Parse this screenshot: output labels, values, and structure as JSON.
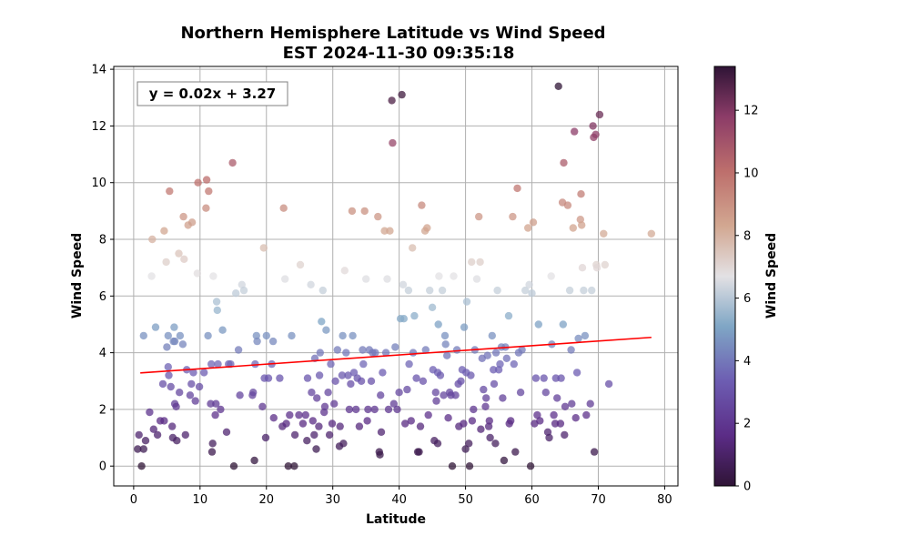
{
  "chart_data": {
    "type": "scatter",
    "title": "Northern Hemisphere Latitude vs Wind Speed",
    "subtitle": "EST 2024-11-30 09:35:18",
    "xlabel": "Latitude",
    "ylabel": "Wind Speed",
    "colorbar_label": "Wind Speed",
    "equation": "y = 0.02x + 3.27",
    "xlim": [
      -3,
      82
    ],
    "ylim": [
      -0.7,
      14.1
    ],
    "xticks": [
      0,
      10,
      20,
      30,
      40,
      50,
      60,
      70,
      80
    ],
    "yticks": [
      0,
      2,
      4,
      6,
      8,
      10,
      12,
      14
    ],
    "colorbar_ticks": [
      0,
      2,
      4,
      6,
      8,
      10,
      12
    ],
    "colorbar_range": [
      0,
      13.4
    ],
    "colormap": "twilight_shifted",
    "regression": {
      "slope": 0.0163,
      "intercept": 3.27,
      "x_start": 1,
      "x_end": 78,
      "color": "#ff0000"
    },
    "grid": true,
    "points": [
      [
        0.6,
        0.6
      ],
      [
        0.8,
        1.1
      ],
      [
        1.2,
        0.0
      ],
      [
        1.5,
        0.6
      ],
      [
        1.8,
        0.9
      ],
      [
        1.5,
        4.6
      ],
      [
        2.4,
        1.9
      ],
      [
        2.7,
        6.7
      ],
      [
        2.8,
        8.0
      ],
      [
        3.0,
        1.3
      ],
      [
        3.3,
        4.9
      ],
      [
        3.6,
        1.1
      ],
      [
        4.0,
        1.6
      ],
      [
        4.4,
        2.9
      ],
      [
        4.6,
        8.3
      ],
      [
        4.6,
        1.6
      ],
      [
        4.9,
        7.2
      ],
      [
        5.0,
        4.2
      ],
      [
        5.2,
        3.5
      ],
      [
        5.2,
        4.6
      ],
      [
        5.3,
        3.2
      ],
      [
        5.4,
        9.7
      ],
      [
        5.6,
        2.8
      ],
      [
        5.8,
        1.4
      ],
      [
        5.9,
        1.0
      ],
      [
        6.0,
        4.4
      ],
      [
        6.1,
        4.9
      ],
      [
        6.2,
        4.4
      ],
      [
        6.2,
        2.2
      ],
      [
        6.4,
        2.1
      ],
      [
        6.5,
        0.9
      ],
      [
        6.8,
        7.5
      ],
      [
        6.9,
        2.6
      ],
      [
        7.0,
        4.6
      ],
      [
        7.4,
        4.3
      ],
      [
        7.5,
        8.8
      ],
      [
        7.6,
        7.3
      ],
      [
        7.8,
        1.1
      ],
      [
        8.0,
        3.4
      ],
      [
        8.2,
        8.5
      ],
      [
        8.5,
        2.5
      ],
      [
        8.7,
        2.9
      ],
      [
        8.8,
        8.6
      ],
      [
        9.0,
        3.3
      ],
      [
        9.3,
        2.3
      ],
      [
        9.6,
        6.8
      ],
      [
        9.7,
        10.0
      ],
      [
        9.9,
        2.8
      ],
      [
        10.6,
        3.3
      ],
      [
        10.9,
        9.1
      ],
      [
        11.0,
        10.1
      ],
      [
        11.2,
        4.6
      ],
      [
        11.3,
        9.7
      ],
      [
        11.6,
        2.2
      ],
      [
        11.7,
        3.6
      ],
      [
        11.8,
        0.5
      ],
      [
        11.9,
        0.8
      ],
      [
        12.0,
        6.7
      ],
      [
        12.3,
        1.8
      ],
      [
        12.4,
        2.2
      ],
      [
        12.5,
        5.8
      ],
      [
        12.6,
        5.5
      ],
      [
        12.7,
        3.6
      ],
      [
        13.1,
        2.0
      ],
      [
        13.4,
        4.8
      ],
      [
        14.0,
        1.2
      ],
      [
        14.3,
        3.6
      ],
      [
        14.6,
        3.6
      ],
      [
        14.9,
        10.7
      ],
      [
        15.1,
        0.0
      ],
      [
        15.4,
        6.1
      ],
      [
        15.8,
        4.1
      ],
      [
        16.0,
        2.5
      ],
      [
        16.3,
        6.4
      ],
      [
        16.6,
        6.2
      ],
      [
        17.9,
        2.5
      ],
      [
        18.0,
        2.6
      ],
      [
        18.2,
        0.2
      ],
      [
        18.3,
        3.6
      ],
      [
        18.5,
        4.6
      ],
      [
        18.6,
        4.4
      ],
      [
        19.4,
        2.1
      ],
      [
        19.6,
        7.7
      ],
      [
        19.7,
        3.1
      ],
      [
        19.9,
        1.0
      ],
      [
        20.0,
        4.6
      ],
      [
        20.3,
        3.1
      ],
      [
        20.8,
        3.6
      ],
      [
        21.0,
        4.4
      ],
      [
        21.1,
        1.7
      ],
      [
        22.0,
        3.1
      ],
      [
        22.4,
        1.4
      ],
      [
        22.6,
        9.1
      ],
      [
        22.8,
        6.6
      ],
      [
        23.0,
        1.5
      ],
      [
        23.3,
        0.0
      ],
      [
        23.5,
        1.8
      ],
      [
        23.8,
        4.6
      ],
      [
        24.2,
        0.0
      ],
      [
        24.3,
        1.1
      ],
      [
        24.9,
        1.8
      ],
      [
        25.1,
        7.1
      ],
      [
        25.5,
        1.5
      ],
      [
        25.9,
        1.8
      ],
      [
        26.1,
        0.9
      ],
      [
        26.2,
        3.1
      ],
      [
        26.8,
        2.6
      ],
      [
        26.7,
        6.4
      ],
      [
        27.0,
        1.6
      ],
      [
        27.2,
        1.1
      ],
      [
        27.3,
        3.8
      ],
      [
        27.5,
        0.6
      ],
      [
        27.6,
        2.4
      ],
      [
        27.9,
        1.4
      ],
      [
        28.0,
        3.2
      ],
      [
        28.1,
        4.0
      ],
      [
        28.3,
        5.1
      ],
      [
        28.5,
        6.2
      ],
      [
        28.7,
        1.9
      ],
      [
        28.8,
        2.1
      ],
      [
        29.0,
        4.8
      ],
      [
        29.3,
        2.6
      ],
      [
        29.5,
        1.1
      ],
      [
        29.7,
        3.6
      ],
      [
        29.9,
        1.5
      ],
      [
        30.2,
        2.2
      ],
      [
        30.4,
        3.0
      ],
      [
        30.7,
        4.1
      ],
      [
        31.0,
        0.7
      ],
      [
        31.1,
        1.4
      ],
      [
        31.4,
        3.2
      ],
      [
        31.5,
        4.6
      ],
      [
        31.6,
        0.8
      ],
      [
        31.8,
        6.9
      ],
      [
        32.0,
        4.0
      ],
      [
        32.3,
        3.2
      ],
      [
        32.5,
        2.0
      ],
      [
        32.7,
        2.9
      ],
      [
        32.9,
        9.0
      ],
      [
        33.0,
        4.6
      ],
      [
        33.2,
        3.3
      ],
      [
        33.5,
        2.0
      ],
      [
        33.7,
        3.1
      ],
      [
        34.0,
        1.4
      ],
      [
        34.3,
        3.0
      ],
      [
        34.5,
        4.1
      ],
      [
        34.6,
        3.6
      ],
      [
        34.8,
        9.0
      ],
      [
        35.0,
        6.6
      ],
      [
        35.2,
        1.6
      ],
      [
        35.3,
        2.0
      ],
      [
        35.5,
        4.1
      ],
      [
        35.8,
        3.0
      ],
      [
        36.0,
        4.0
      ],
      [
        36.3,
        2.0
      ],
      [
        36.4,
        4.0
      ],
      [
        36.8,
        8.8
      ],
      [
        37.0,
        0.5
      ],
      [
        37.1,
        0.4
      ],
      [
        37.2,
        2.5
      ],
      [
        37.3,
        1.2
      ],
      [
        37.5,
        3.3
      ],
      [
        37.8,
        8.3
      ],
      [
        38.0,
        4.0
      ],
      [
        38.2,
        6.6
      ],
      [
        38.4,
        2.0
      ],
      [
        38.6,
        8.3
      ],
      [
        38.9,
        12.9
      ],
      [
        39.0,
        11.4
      ],
      [
        39.2,
        2.2
      ],
      [
        39.4,
        4.2
      ],
      [
        39.7,
        2.0
      ],
      [
        40.0,
        2.6
      ],
      [
        40.2,
        5.2
      ],
      [
        40.4,
        13.1
      ],
      [
        40.6,
        6.4
      ],
      [
        40.7,
        5.2
      ],
      [
        40.9,
        1.5
      ],
      [
        41.2,
        2.7
      ],
      [
        41.4,
        6.2
      ],
      [
        41.5,
        3.6
      ],
      [
        41.8,
        1.6
      ],
      [
        42.0,
        7.7
      ],
      [
        42.1,
        4.0
      ],
      [
        42.3,
        5.3
      ],
      [
        42.6,
        3.1
      ],
      [
        42.8,
        0.5
      ],
      [
        43.0,
        0.5
      ],
      [
        43.2,
        1.4
      ],
      [
        43.4,
        9.2
      ],
      [
        43.6,
        3.0
      ],
      [
        43.9,
        8.3
      ],
      [
        44.0,
        4.1
      ],
      [
        44.2,
        8.4
      ],
      [
        44.4,
        1.8
      ],
      [
        44.6,
        6.2
      ],
      [
        45.0,
        5.6
      ],
      [
        45.1,
        3.4
      ],
      [
        45.3,
        0.9
      ],
      [
        45.5,
        2.6
      ],
      [
        45.6,
        2.3
      ],
      [
        45.8,
        3.3
      ],
      [
        45.8,
        0.8
      ],
      [
        45.9,
        5.0
      ],
      [
        46.0,
        6.7
      ],
      [
        46.2,
        3.2
      ],
      [
        46.5,
        6.2
      ],
      [
        46.7,
        2.5
      ],
      [
        46.9,
        4.6
      ],
      [
        47.0,
        4.3
      ],
      [
        47.2,
        3.9
      ],
      [
        47.4,
        1.7
      ],
      [
        47.6,
        2.6
      ],
      [
        47.8,
        2.5
      ],
      [
        48.0,
        0.0
      ],
      [
        48.2,
        6.7
      ],
      [
        48.5,
        2.5
      ],
      [
        48.7,
        4.1
      ],
      [
        48.9,
        2.9
      ],
      [
        49.0,
        1.4
      ],
      [
        49.3,
        3.0
      ],
      [
        49.5,
        3.4
      ],
      [
        49.7,
        1.5
      ],
      [
        49.8,
        4.9
      ],
      [
        50.0,
        0.6
      ],
      [
        50.1,
        3.3
      ],
      [
        50.2,
        5.8
      ],
      [
        50.5,
        0.8
      ],
      [
        50.6,
        0.0
      ],
      [
        50.8,
        3.2
      ],
      [
        50.9,
        7.2
      ],
      [
        51.0,
        1.6
      ],
      [
        51.2,
        2.0
      ],
      [
        51.4,
        4.1
      ],
      [
        51.7,
        6.6
      ],
      [
        52.0,
        8.8
      ],
      [
        52.2,
        7.2
      ],
      [
        52.3,
        1.3
      ],
      [
        52.5,
        3.8
      ],
      [
        52.7,
        2.7
      ],
      [
        53.0,
        2.1
      ],
      [
        53.1,
        2.4
      ],
      [
        53.3,
        3.9
      ],
      [
        53.5,
        1.4
      ],
      [
        53.6,
        1.6
      ],
      [
        53.7,
        1.0
      ],
      [
        54.0,
        4.6
      ],
      [
        54.2,
        3.4
      ],
      [
        54.3,
        2.9
      ],
      [
        54.5,
        0.8
      ],
      [
        54.6,
        4.0
      ],
      [
        54.8,
        6.2
      ],
      [
        55.0,
        3.4
      ],
      [
        55.2,
        3.6
      ],
      [
        55.4,
        4.2
      ],
      [
        55.6,
        2.4
      ],
      [
        55.8,
        0.2
      ],
      [
        56.0,
        4.2
      ],
      [
        56.2,
        3.8
      ],
      [
        56.5,
        5.3
      ],
      [
        56.6,
        1.5
      ],
      [
        56.8,
        1.6
      ],
      [
        57.1,
        8.8
      ],
      [
        57.3,
        3.6
      ],
      [
        57.5,
        0.5
      ],
      [
        57.8,
        9.8
      ],
      [
        58.0,
        4.0
      ],
      [
        58.3,
        2.6
      ],
      [
        58.5,
        4.1
      ],
      [
        59.0,
        6.2
      ],
      [
        59.4,
        8.4
      ],
      [
        59.6,
        6.4
      ],
      [
        59.8,
        0.0
      ],
      [
        60.0,
        6.1
      ],
      [
        60.2,
        8.6
      ],
      [
        60.4,
        1.5
      ],
      [
        60.6,
        3.1
      ],
      [
        60.8,
        1.8
      ],
      [
        61.0,
        5.0
      ],
      [
        61.2,
        1.6
      ],
      [
        61.8,
        3.1
      ],
      [
        62.1,
        2.6
      ],
      [
        62.4,
        1.2
      ],
      [
        62.6,
        1.0
      ],
      [
        62.9,
        6.7
      ],
      [
        63.0,
        4.3
      ],
      [
        63.3,
        1.8
      ],
      [
        63.5,
        1.5
      ],
      [
        63.6,
        3.1
      ],
      [
        63.8,
        2.4
      ],
      [
        64.0,
        13.4
      ],
      [
        64.3,
        1.5
      ],
      [
        64.4,
        3.1
      ],
      [
        64.6,
        9.3
      ],
      [
        64.7,
        5.0
      ],
      [
        64.8,
        10.7
      ],
      [
        64.9,
        1.1
      ],
      [
        65.0,
        2.1
      ],
      [
        65.4,
        9.2
      ],
      [
        65.7,
        6.2
      ],
      [
        65.9,
        4.1
      ],
      [
        66.0,
        2.2
      ],
      [
        66.2,
        8.4
      ],
      [
        66.4,
        11.8
      ],
      [
        66.6,
        1.7
      ],
      [
        66.8,
        3.3
      ],
      [
        67.0,
        4.5
      ],
      [
        67.3,
        8.7
      ],
      [
        67.4,
        9.6
      ],
      [
        67.5,
        8.5
      ],
      [
        67.6,
        7.0
      ],
      [
        67.8,
        6.2
      ],
      [
        68.0,
        4.6
      ],
      [
        68.2,
        1.8
      ],
      [
        68.8,
        2.2
      ],
      [
        69.0,
        6.2
      ],
      [
        69.2,
        12.0
      ],
      [
        69.3,
        11.6
      ],
      [
        69.4,
        0.5
      ],
      [
        69.6,
        11.7
      ],
      [
        69.7,
        7.1
      ],
      [
        69.8,
        7.0
      ],
      [
        70.2,
        12.4
      ],
      [
        70.8,
        8.2
      ],
      [
        71.0,
        7.1
      ],
      [
        71.6,
        2.9
      ],
      [
        78.0,
        8.2
      ]
    ]
  }
}
